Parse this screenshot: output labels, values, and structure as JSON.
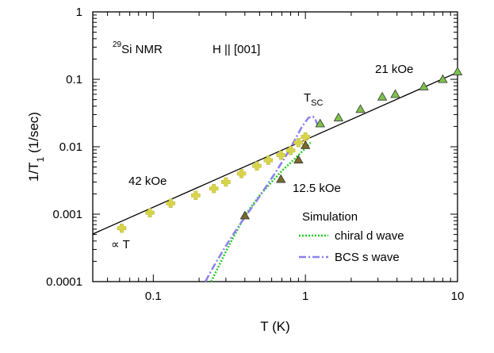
{
  "chart_data": {
    "type": "scatter",
    "title": "",
    "xlabel": "T (K)",
    "ylabel": "1/T",
    "ylabel_sub": "1",
    "ylabel_unit": " (1/sec)",
    "xscale": "log",
    "yscale": "log",
    "xlim": [
      0.04,
      10
    ],
    "ylim": [
      0.0001,
      1
    ],
    "x_ticks": [
      {
        "value": 0.1,
        "label": "0.1"
      },
      {
        "value": 1,
        "label": "1"
      },
      {
        "value": 10,
        "label": "10"
      }
    ],
    "y_ticks": [
      {
        "value": 0.0001,
        "label": "0.0001"
      },
      {
        "value": 0.001,
        "label": "0.001"
      },
      {
        "value": 0.01,
        "label": "0.01"
      },
      {
        "value": 0.1,
        "label": "0.1"
      },
      {
        "value": 1,
        "label": "1"
      }
    ],
    "series": [
      {
        "name": "42 kOe",
        "marker": "cross",
        "color": "#d8d44a",
        "x": [
          0.062,
          0.095,
          0.13,
          0.19,
          0.25,
          0.3,
          0.38,
          0.48,
          0.57,
          0.69,
          0.8,
          0.9,
          1.0
        ],
        "y": [
          0.00062,
          0.00105,
          0.00145,
          0.0019,
          0.0024,
          0.003,
          0.004,
          0.0052,
          0.0063,
          0.0075,
          0.0088,
          0.0115,
          0.014
        ]
      },
      {
        "name": "12.5 kOe",
        "marker": "triangle",
        "color": "#7a6a2a",
        "x": [
          0.4,
          0.69,
          0.9,
          1.0
        ],
        "y": [
          0.00095,
          0.0033,
          0.0064,
          0.0105
        ]
      },
      {
        "name": "21 kOe",
        "marker": "triangle",
        "color": "#7ec24a",
        "x": [
          1.25,
          1.65,
          2.3,
          3.2,
          3.9,
          6.0,
          8.0,
          10.0
        ],
        "y": [
          0.022,
          0.027,
          0.036,
          0.055,
          0.06,
          0.078,
          0.1,
          0.13
        ]
      }
    ],
    "fit_line": {
      "name": "∝ T",
      "slope_over_T": 0.0127
    },
    "simulations": [
      {
        "name": "chiral d wave",
        "style": "dotted",
        "color": "#22cc22",
        "x": [
          0.24,
          0.3,
          0.4,
          0.5,
          0.6,
          0.7,
          0.8,
          0.9,
          1.0,
          1.08
        ],
        "y": [
          0.0001,
          0.00028,
          0.00095,
          0.0019,
          0.003,
          0.0044,
          0.0058,
          0.0075,
          0.0095,
          0.0115
        ]
      },
      {
        "name": "BCS s wave",
        "style": "dashdot",
        "color": "#8a80ee",
        "x": [
          0.22,
          0.25,
          0.3,
          0.35,
          0.4,
          0.48,
          0.56,
          0.65,
          0.75,
          0.85,
          0.95,
          1.05,
          1.12,
          1.16,
          1.2
        ],
        "y": [
          0.0001,
          0.00017,
          0.00034,
          0.00058,
          0.0009,
          0.0016,
          0.0027,
          0.0045,
          0.0075,
          0.0125,
          0.02,
          0.027,
          0.028,
          0.026,
          0.021
        ]
      }
    ],
    "annotations": {
      "nucleus_sup": "29",
      "nucleus": "Si NMR",
      "field_dir": "H || [001]",
      "t_sc": "T",
      "t_sc_sub": "SC",
      "label_21": "21 kOe",
      "label_42": "42 kOe",
      "label_125": "12.5 kOe",
      "propto": "∝ T",
      "sim_title": "Simulation"
    }
  }
}
